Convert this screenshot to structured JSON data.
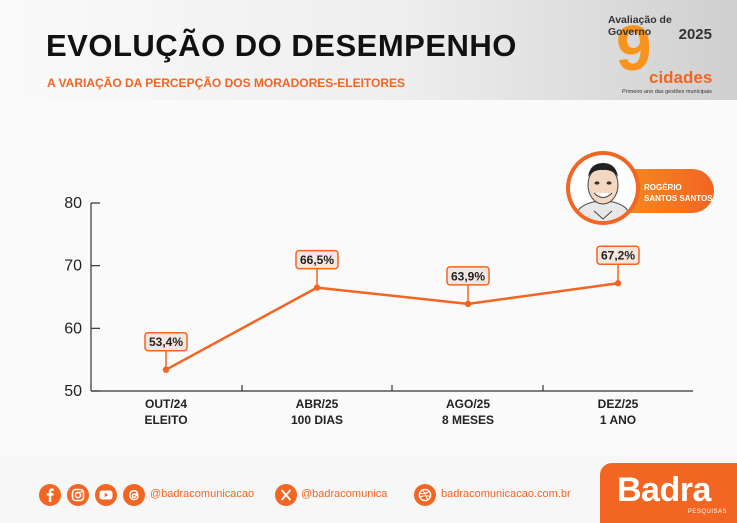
{
  "header": {
    "title": "EVOLUÇÃO DO DESEMPENHO",
    "subtitle": "A VARIAÇÃO DA PERCEPÇÃO DOS MORADORES-ELEITORES",
    "badge": {
      "top": "Avaliação de Governo",
      "year": "2025",
      "number": "9",
      "word": "cidades",
      "tagline": "Primeiro ano das gestões municipais"
    }
  },
  "person": {
    "name": "ROGÉRIO SANTOS SANTOS"
  },
  "chart_data": {
    "type": "line",
    "categories": [
      [
        "OUT/24",
        "ELEITO"
      ],
      [
        "ABR/25",
        "100 DIAS"
      ],
      [
        "AGO/25",
        "8 MESES"
      ],
      [
        "DEZ/25",
        "1 ANO"
      ]
    ],
    "values": [
      53.4,
      66.5,
      63.9,
      67.2
    ],
    "data_labels": [
      "53,4%",
      "66,5%",
      "63,9%",
      "67,2%"
    ],
    "yticks": [
      50,
      60,
      70,
      80
    ],
    "ylim": [
      50,
      80
    ],
    "grid": false,
    "color": "#f26522"
  },
  "footer": {
    "icons": [
      "facebook-icon",
      "instagram-icon",
      "youtube-icon",
      "threads-icon",
      "x-icon",
      "dribbble-icon"
    ],
    "handle1": "@badracomunicacao",
    "handle2": "@badracomunica",
    "website": "badracomunicacao.com.br",
    "brand": "Badra",
    "brand_sub": "PESQUISAS"
  }
}
